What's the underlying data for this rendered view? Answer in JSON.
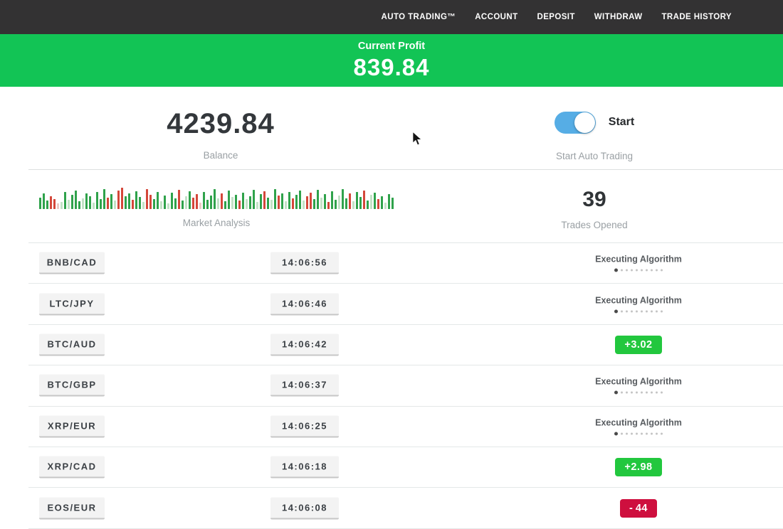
{
  "colors": {
    "nav-bg": "#333233",
    "banner-green": "#12c455",
    "toggle-blue": "#56ade5",
    "badge-green": "#22c73e",
    "badge-red": "#ce0f3e",
    "bar-green": "#2fa24b",
    "bar-red": "#d4473a",
    "bar-light-green": "#c3e2c7",
    "bar-light-red": "#eccac6"
  },
  "nav": {
    "items": [
      "AUTO TRADING™",
      "ACCOUNT",
      "DEPOSIT",
      "WITHDRAW",
      "TRADE HISTORY"
    ]
  },
  "banner": {
    "label": "Current Profit",
    "value": "839.84"
  },
  "account": {
    "balance_value": "4239.84",
    "balance_label": "Balance",
    "toggle_state": "on",
    "toggle_label": "Start",
    "toggle_caption": "Start Auto Trading"
  },
  "market": {
    "label": "Market Analysis",
    "trades_opened_value": "39",
    "trades_opened_label": "Trades Opened",
    "bars": [
      [
        16,
        "g"
      ],
      [
        22,
        "g"
      ],
      [
        12,
        "g"
      ],
      [
        18,
        "r"
      ],
      [
        14,
        "r"
      ],
      [
        8,
        "lr"
      ],
      [
        10,
        "lg"
      ],
      [
        24,
        "g"
      ],
      [
        13,
        "lg"
      ],
      [
        20,
        "g"
      ],
      [
        26,
        "g"
      ],
      [
        11,
        "g"
      ],
      [
        15,
        "lg"
      ],
      [
        22,
        "g"
      ],
      [
        18,
        "g"
      ],
      [
        9,
        "lg"
      ],
      [
        24,
        "g"
      ],
      [
        14,
        "g"
      ],
      [
        28,
        "g"
      ],
      [
        16,
        "r"
      ],
      [
        21,
        "g"
      ],
      [
        12,
        "lg"
      ],
      [
        26,
        "r"
      ],
      [
        30,
        "r"
      ],
      [
        18,
        "g"
      ],
      [
        22,
        "g"
      ],
      [
        13,
        "r"
      ],
      [
        25,
        "g"
      ],
      [
        17,
        "g"
      ],
      [
        10,
        "lg"
      ],
      [
        28,
        "r"
      ],
      [
        20,
        "r"
      ],
      [
        14,
        "g"
      ],
      [
        24,
        "g"
      ],
      [
        11,
        "lg"
      ],
      [
        19,
        "g"
      ],
      [
        8,
        "lg"
      ],
      [
        23,
        "g"
      ],
      [
        15,
        "g"
      ],
      [
        27,
        "r"
      ],
      [
        12,
        "g"
      ],
      [
        18,
        "lg"
      ],
      [
        25,
        "g"
      ],
      [
        16,
        "r"
      ],
      [
        21,
        "r"
      ],
      [
        9,
        "lr"
      ],
      [
        24,
        "g"
      ],
      [
        13,
        "g"
      ],
      [
        19,
        "g"
      ],
      [
        28,
        "g"
      ],
      [
        15,
        "lg"
      ],
      [
        22,
        "r"
      ],
      [
        11,
        "g"
      ],
      [
        26,
        "g"
      ],
      [
        17,
        "lg"
      ],
      [
        20,
        "g"
      ],
      [
        12,
        "r"
      ],
      [
        23,
        "g"
      ],
      [
        14,
        "lg"
      ],
      [
        18,
        "g"
      ],
      [
        27,
        "g"
      ],
      [
        10,
        "lg"
      ],
      [
        21,
        "g"
      ],
      [
        25,
        "r"
      ],
      [
        16,
        "g"
      ],
      [
        13,
        "lg"
      ],
      [
        28,
        "g"
      ],
      [
        19,
        "r"
      ],
      [
        22,
        "g"
      ],
      [
        11,
        "lg"
      ],
      [
        24,
        "g"
      ],
      [
        15,
        "r"
      ],
      [
        20,
        "g"
      ],
      [
        26,
        "g"
      ],
      [
        12,
        "lg"
      ],
      [
        18,
        "r"
      ],
      [
        23,
        "r"
      ],
      [
        14,
        "g"
      ],
      [
        27,
        "g"
      ],
      [
        16,
        "lg"
      ],
      [
        21,
        "g"
      ],
      [
        10,
        "r"
      ],
      [
        25,
        "g"
      ],
      [
        13,
        "g"
      ],
      [
        19,
        "lg"
      ],
      [
        28,
        "g"
      ],
      [
        15,
        "g"
      ],
      [
        22,
        "r"
      ],
      [
        11,
        "lg"
      ],
      [
        24,
        "g"
      ],
      [
        17,
        "g"
      ],
      [
        26,
        "r"
      ],
      [
        12,
        "g"
      ],
      [
        20,
        "lg"
      ],
      [
        23,
        "g"
      ],
      [
        14,
        "r"
      ],
      [
        18,
        "g"
      ],
      [
        9,
        "lg"
      ],
      [
        21,
        "g"
      ],
      [
        16,
        "g"
      ]
    ]
  },
  "trades": {
    "executing_label": "Executing Algorithm",
    "rows": [
      {
        "pair": "BNB/CAD",
        "time": "14:06:56",
        "status": "executing"
      },
      {
        "pair": "LTC/JPY",
        "time": "14:06:46",
        "status": "executing"
      },
      {
        "pair": "BTC/AUD",
        "time": "14:06:42",
        "status": "profit",
        "result": {
          "sign": "+",
          "value": "3.02"
        }
      },
      {
        "pair": "BTC/GBP",
        "time": "14:06:37",
        "status": "executing"
      },
      {
        "pair": "XRP/EUR",
        "time": "14:06:25",
        "status": "executing"
      },
      {
        "pair": "XRP/CAD",
        "time": "14:06:18",
        "status": "profit",
        "result": {
          "sign": "+",
          "value": "2.98"
        }
      },
      {
        "pair": "EOS/EUR",
        "time": "14:06:08",
        "status": "loss",
        "result": {
          "sign": "-",
          "value": "44"
        }
      }
    ]
  }
}
